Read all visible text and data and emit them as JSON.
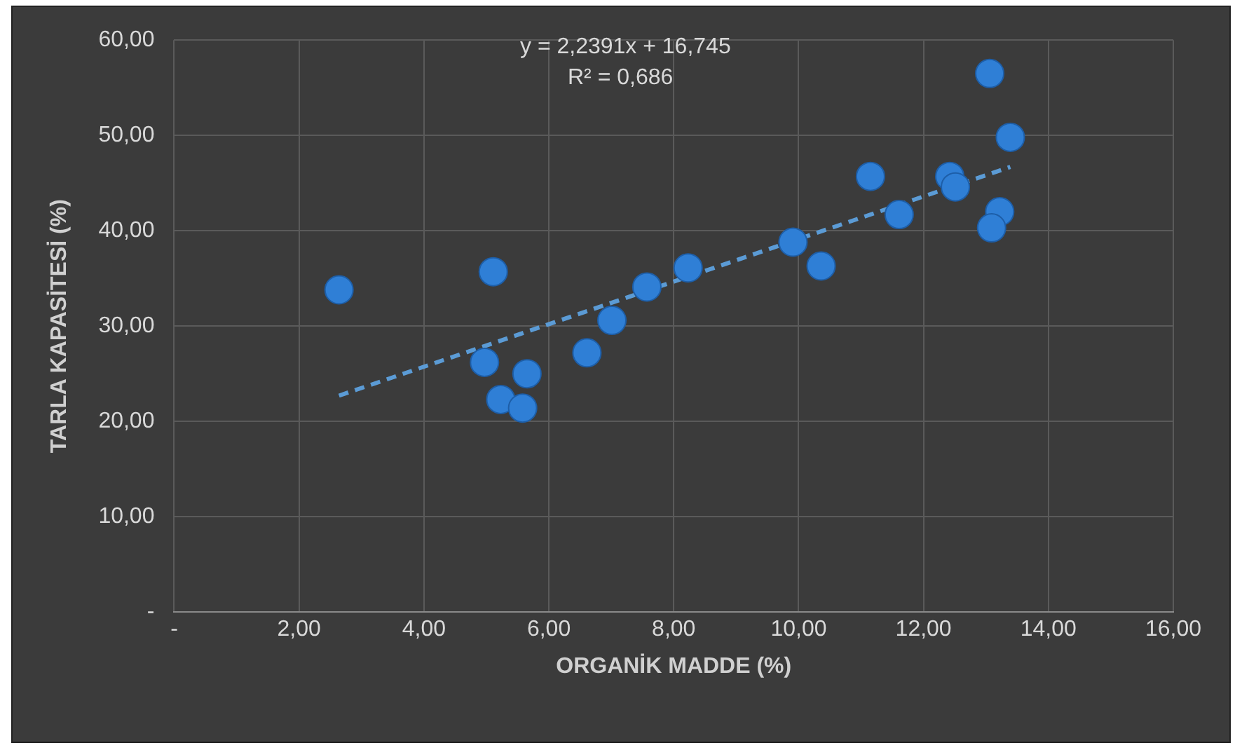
{
  "chart_data": {
    "type": "scatter",
    "xlabel": "ORGANİK MADDE (%)",
    "ylabel": "TARLA KAPASİTESİ (%)",
    "annotations": [
      "y = 2,2391x + 16,745",
      "R² = 0,686"
    ],
    "series": [
      {
        "type": "scatter",
        "color": "#2f7fd6",
        "marker": "circle",
        "x": [
          2.64,
          5.11,
          4.97,
          5.65,
          5.23,
          5.58,
          6.61,
          7.01,
          7.57,
          8.23,
          9.91,
          10.36,
          11.15,
          11.61,
          12.42,
          12.51,
          13.06,
          13.39,
          13.22,
          13.09
        ],
        "values": [
          33.8,
          35.7,
          26.2,
          25.0,
          22.3,
          21.4,
          27.2,
          30.6,
          34.1,
          36.1,
          38.8,
          36.3,
          45.7,
          41.7,
          45.7,
          44.6,
          56.5,
          49.8,
          42.0,
          40.3
        ]
      },
      {
        "type": "line",
        "color": "#5b9bd5",
        "line_style": "dashed",
        "marker": "none",
        "x": [
          2.64,
          13.39
        ],
        "values": [
          22.7,
          46.7
        ]
      }
    ],
    "xlim": [
      0,
      16
    ],
    "xticks": [
      {
        "value": 0,
        "label": "-"
      },
      {
        "value": 2,
        "label": "2,00"
      },
      {
        "value": 4,
        "label": "4,00"
      },
      {
        "value": 6,
        "label": "6,00"
      },
      {
        "value": 8,
        "label": "8,00"
      },
      {
        "value": 10,
        "label": "10,00"
      },
      {
        "value": 12,
        "label": "12,00"
      },
      {
        "value": 14,
        "label": "14,00"
      },
      {
        "value": 16,
        "label": "16,00"
      }
    ],
    "ylim": [
      0,
      60
    ],
    "yticks": [
      {
        "value": 0,
        "label": "-"
      },
      {
        "value": 10,
        "label": "10,00"
      },
      {
        "value": 20,
        "label": "20,00"
      },
      {
        "value": 30,
        "label": "30,00"
      },
      {
        "value": 40,
        "label": "40,00"
      },
      {
        "value": 50,
        "label": "50,00"
      },
      {
        "value": 60,
        "label": "60,00"
      }
    ],
    "grid": true,
    "legend": false
  }
}
